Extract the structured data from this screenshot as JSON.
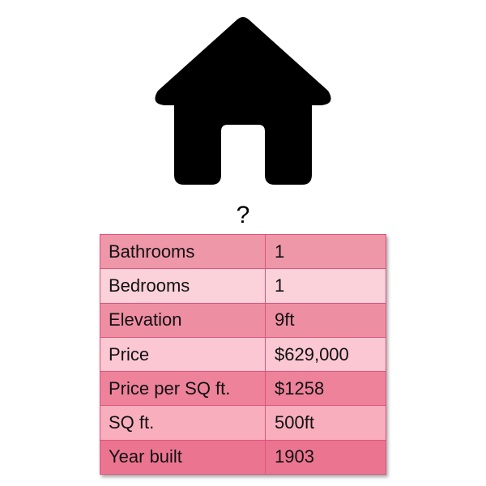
{
  "question": "?",
  "table": {
    "rows": [
      {
        "label": "Bathrooms",
        "value": "1"
      },
      {
        "label": "Bedrooms",
        "value": "1"
      },
      {
        "label": "Elevation",
        "value": "9ft"
      },
      {
        "label": "Price",
        "value": "$629,000"
      },
      {
        "label": "Price per SQ ft.",
        "value": "$1258"
      },
      {
        "label": "SQ ft.",
        "value": "500ft"
      },
      {
        "label": "Year built",
        "value": "1903"
      }
    ]
  },
  "icon": "house-icon",
  "colors": {
    "icon": "#000000",
    "table_border": "#e0527a",
    "row_fills": [
      "#ee97a9",
      "#fbd1da",
      "#ee8ea3",
      "#fbc7d3",
      "#ed829a",
      "#f8aebd",
      "#eb7591"
    ]
  }
}
